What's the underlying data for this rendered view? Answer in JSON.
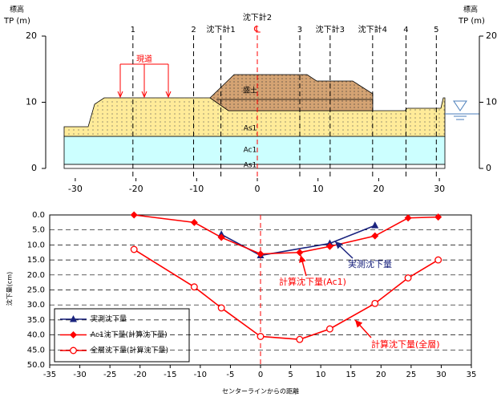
{
  "cross_section": {
    "elevation_label": "標高",
    "elevation_unit": "TP (m)",
    "yticks": [
      0,
      10,
      20
    ],
    "xticks": [
      -30,
      -20,
      -10,
      0,
      10,
      20,
      30
    ],
    "center_label": "沈下計2",
    "stations": [
      {
        "label": "1",
        "x": -20.5
      },
      {
        "label": "2",
        "x": -10.5
      },
      {
        "label": "沈下計1",
        "x": -6
      },
      {
        "label": "℄",
        "x": 0
      },
      {
        "label": "3",
        "x": 7
      },
      {
        "label": "沈下計3",
        "x": 12
      },
      {
        "label": "沈下計4",
        "x": 19
      },
      {
        "label": "4",
        "x": 24.5
      },
      {
        "label": "5",
        "x": 29.5
      }
    ],
    "layers": {
      "embankment": "盛土",
      "upper_sand": "As1",
      "clay": "Ac1",
      "lower_sand": "As1",
      "road": "現道"
    }
  },
  "chart_data": {
    "type": "line",
    "xlabel": "センターラインからの距離",
    "ylabel": "沈下量(cm)",
    "xlim": [
      -35,
      35
    ],
    "xticks": [
      -35,
      -30,
      -25,
      -20,
      -15,
      -10,
      -5,
      0,
      5,
      10,
      15,
      20,
      25,
      30,
      35
    ],
    "ylim": [
      0,
      50
    ],
    "y_inverted": true,
    "yticks": [
      {
        "value": 0,
        "label": "0.0"
      },
      {
        "value": 5,
        "label": "5.0"
      },
      {
        "value": 10,
        "label": "10.0"
      },
      {
        "value": 15,
        "label": "15.0"
      },
      {
        "value": 20,
        "label": "20.0"
      },
      {
        "value": 25,
        "label": "25.0"
      },
      {
        "value": 30,
        "label": "30.0"
      },
      {
        "value": 35,
        "label": "35.0"
      },
      {
        "value": 40,
        "label": "40.0"
      },
      {
        "value": 45,
        "label": "45.0"
      },
      {
        "value": 50,
        "label": "50.0"
      }
    ],
    "grid": true,
    "series": [
      {
        "name": "実測沈下量",
        "color": "#1a237e",
        "marker": "triangle",
        "x": [
          -6.5,
          0,
          11.5,
          19
        ],
        "values": [
          6.5,
          13.5,
          9.5,
          3.5
        ]
      },
      {
        "name": "Ac1沈下量(計算沈下量)",
        "color": "#ff0000",
        "marker": "diamond",
        "x": [
          -21,
          -11,
          -6.5,
          0,
          6.5,
          11.5,
          19,
          24.5,
          29.5
        ],
        "values": [
          0,
          2.5,
          7.5,
          13,
          12.5,
          10.5,
          7,
          1,
          0.7
        ]
      },
      {
        "name": "全層沈下量(計算沈下量)",
        "color": "#ff0000",
        "marker": "circle",
        "x": [
          -21,
          -11,
          -6.5,
          0,
          6.5,
          11.5,
          19,
          24.5,
          29.5
        ],
        "values": [
          11.5,
          24,
          31,
          40.5,
          41.5,
          38,
          29.5,
          21,
          15
        ]
      }
    ],
    "annotations": [
      {
        "text": "実測沈下量",
        "color": "#1a237e"
      },
      {
        "text": "計算沈下量(Ac1)",
        "color": "#ff0000"
      },
      {
        "text": "計算沈下量(全層)",
        "color": "#ff0000"
      }
    ]
  }
}
